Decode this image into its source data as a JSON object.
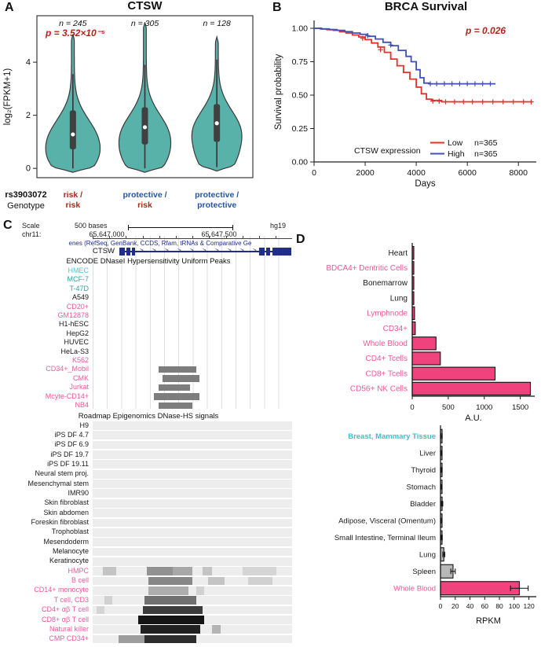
{
  "panels": {
    "a": {
      "letter": "A"
    },
    "b": {
      "letter": "B"
    },
    "c": {
      "letter": "C"
    },
    "d": {
      "letter": "D"
    }
  },
  "colors": {
    "red": "#b3241c",
    "blue": "#2456a4",
    "km_low": "#e23328",
    "km_high": "#4050b5",
    "violin_fill": "#58b2aa",
    "violin_stroke": "#3a3a3a",
    "box": "#404040",
    "pink_bar": "#f0437e",
    "pink_label": "#e85a9c",
    "cyan": "#45c8e8",
    "teal": "#2fa89f",
    "breast": "#3fbfc9",
    "gray_bar": "#b8b8b8",
    "peak": "#7d7d7d",
    "gene": "#202e8a",
    "row_bg": "#ededed",
    "grid": "#dcdfe4"
  },
  "chart_data": [
    {
      "id": "ctsw_violin",
      "type": "violin",
      "title": "CTSW",
      "p_value": "p = 3.52×10⁻⁵",
      "ylabel": "log₂(FPKM+1)",
      "yticks": [
        0,
        2,
        4
      ],
      "ylim": [
        -0.35,
        5.75
      ],
      "x_header": [
        "rs3903072",
        "Genotype"
      ],
      "groups": [
        {
          "n_label": "n = 245",
          "genotype_line1": "risk /",
          "genotype_line2": "risk",
          "line1_color": "red",
          "line2_color": "red",
          "median": 1.28,
          "q1": 0.72,
          "q3": 2.18,
          "whisker_low": 0.0,
          "whisker_high": 3.55,
          "tail_low": -0.15,
          "tail_high": 5.05,
          "mode": 1.05
        },
        {
          "n_label": "n = 305",
          "genotype_line1": "protective /",
          "genotype_line2": "risk",
          "line1_color": "blue",
          "line2_color": "red",
          "median": 1.55,
          "q1": 0.9,
          "q3": 2.3,
          "whisker_low": 0.0,
          "whisker_high": 3.9,
          "tail_low": -0.15,
          "tail_high": 5.5,
          "mode": 1.2
        },
        {
          "n_label": "n = 128",
          "genotype_line1": "protective /",
          "genotype_line2": "protective",
          "line1_color": "blue",
          "line2_color": "blue",
          "median": 1.7,
          "q1": 1.0,
          "q3": 2.42,
          "whisker_low": 0.05,
          "whisker_high": 4.1,
          "tail_low": -0.1,
          "tail_high": 4.95,
          "mode": 1.35
        }
      ]
    },
    {
      "id": "brca_km",
      "type": "line",
      "title": "BRCA Survival",
      "p_value": "p = 0.026",
      "xlabel": "Days",
      "ylabel": "Survival probability",
      "xticks": [
        0,
        2000,
        4000,
        6000,
        8000
      ],
      "yticks": [
        "0.00",
        "0.25",
        "0.50",
        "0.75",
        "1.00"
      ],
      "xlim": [
        0,
        8700
      ],
      "ylim": [
        0,
        1.02
      ],
      "legend_title": "CTSW expression",
      "series": [
        {
          "name": "Low",
          "n_label": "n=365",
          "color_key": "km_low",
          "steps": [
            [
              0,
              1.0
            ],
            [
              250,
              0.995
            ],
            [
              500,
              0.99
            ],
            [
              750,
              0.985
            ],
            [
              1000,
              0.975
            ],
            [
              1250,
              0.965
            ],
            [
              1500,
              0.95
            ],
            [
              1750,
              0.935
            ],
            [
              2000,
              0.915
            ],
            [
              2250,
              0.89
            ],
            [
              2500,
              0.86
            ],
            [
              2750,
              0.82
            ],
            [
              3000,
              0.77
            ],
            [
              3250,
              0.72
            ],
            [
              3500,
              0.67
            ],
            [
              3750,
              0.62
            ],
            [
              4000,
              0.56
            ],
            [
              4200,
              0.51
            ],
            [
              4400,
              0.47
            ],
            [
              4600,
              0.46
            ],
            [
              5000,
              0.45
            ],
            [
              8550,
              0.45
            ]
          ],
          "censors": [
            [
              1900,
              0.925
            ],
            [
              2600,
              0.84
            ],
            [
              4650,
              0.455
            ],
            [
              4900,
              0.455
            ],
            [
              5150,
              0.45
            ],
            [
              5500,
              0.45
            ],
            [
              5850,
              0.45
            ],
            [
              6200,
              0.45
            ],
            [
              6600,
              0.45
            ],
            [
              7000,
              0.45
            ],
            [
              7400,
              0.45
            ],
            [
              7800,
              0.45
            ],
            [
              8200,
              0.45
            ],
            [
              8500,
              0.45
            ]
          ]
        },
        {
          "name": "High",
          "n_label": "n=365",
          "color_key": "km_high",
          "steps": [
            [
              0,
              1.0
            ],
            [
              300,
              0.995
            ],
            [
              600,
              0.99
            ],
            [
              900,
              0.985
            ],
            [
              1200,
              0.975
            ],
            [
              1500,
              0.965
            ],
            [
              1800,
              0.955
            ],
            [
              2100,
              0.94
            ],
            [
              2400,
              0.92
            ],
            [
              2700,
              0.895
            ],
            [
              3000,
              0.87
            ],
            [
              3300,
              0.835
            ],
            [
              3600,
              0.79
            ],
            [
              3800,
              0.75
            ],
            [
              4000,
              0.69
            ],
            [
              4150,
              0.63
            ],
            [
              4300,
              0.59
            ],
            [
              4500,
              0.585
            ],
            [
              7100,
              0.585
            ]
          ],
          "censors": [
            [
              2100,
              0.945
            ],
            [
              3000,
              0.875
            ],
            [
              4550,
              0.585
            ],
            [
              4800,
              0.585
            ],
            [
              5100,
              0.585
            ],
            [
              5400,
              0.585
            ],
            [
              5700,
              0.585
            ],
            [
              6000,
              0.585
            ],
            [
              6300,
              0.585
            ],
            [
              6600,
              0.585
            ],
            [
              6900,
              0.585
            ]
          ]
        }
      ]
    },
    {
      "id": "au_bars",
      "type": "bar",
      "xlabel": "A.U.",
      "xticks": [
        0,
        500,
        1000,
        1500
      ],
      "xlim": [
        0,
        1700
      ],
      "bars": [
        {
          "label": "Heart",
          "value": 10,
          "label_color": "black",
          "fill": "pink"
        },
        {
          "label": "BDCA4+ Dentritic Cells",
          "value": 20,
          "label_color": "pink",
          "fill": "pink"
        },
        {
          "label": "Bonemarrow",
          "value": 14,
          "label_color": "black",
          "fill": "pink"
        },
        {
          "label": "Lung",
          "value": 20,
          "label_color": "black",
          "fill": "pink"
        },
        {
          "label": "Lymphnode",
          "value": 32,
          "label_color": "pink",
          "fill": "pink"
        },
        {
          "label": "CD34+",
          "value": 42,
          "label_color": "pink",
          "fill": "pink"
        },
        {
          "label": "Whole Blood",
          "value": 330,
          "label_color": "pink",
          "fill": "pink"
        },
        {
          "label": "CD4+ Tcells",
          "value": 390,
          "label_color": "pink",
          "fill": "pink"
        },
        {
          "label": "CD8+ Tcells",
          "value": 1150,
          "label_color": "pink",
          "fill": "pink"
        },
        {
          "label": "CD56+ NK Cells",
          "value": 1640,
          "label_color": "pink",
          "fill": "pink"
        }
      ]
    },
    {
      "id": "rpkm_bars",
      "type": "bar",
      "xlabel": "RPKM",
      "xticks": [
        0,
        20,
        40,
        60,
        80,
        100,
        120
      ],
      "xlim": [
        0,
        130
      ],
      "bars": [
        {
          "label": "Breast, Mammary Tissue",
          "value": 1.5,
          "err": 0.8,
          "label_color": "breast",
          "bold": true,
          "fill": "gray"
        },
        {
          "label": "Liver",
          "value": 1.2,
          "err": 0.5,
          "label_color": "black",
          "fill": "gray"
        },
        {
          "label": "Thyroid",
          "value": 1.6,
          "err": 0.6,
          "label_color": "black",
          "fill": "gray"
        },
        {
          "label": "Stomach",
          "value": 1.1,
          "err": 0.5,
          "label_color": "black",
          "fill": "gray"
        },
        {
          "label": "Bladder",
          "value": 2.2,
          "err": 0.9,
          "label_color": "black",
          "fill": "gray"
        },
        {
          "label": "Adipose, Visceral (Omentum)",
          "value": 1.4,
          "err": 0.6,
          "label_color": "black",
          "fill": "gray"
        },
        {
          "label": "Small Intestine, Terminal Ileum",
          "value": 1.7,
          "err": 0.7,
          "label_color": "black",
          "fill": "gray"
        },
        {
          "label": "Lung",
          "value": 4.5,
          "err": 1.3,
          "label_color": "black",
          "fill": "gray"
        },
        {
          "label": "Spleen",
          "value": 17,
          "err": 3,
          "label_color": "black",
          "fill": "gray"
        },
        {
          "label": "Whole Blood",
          "value": 107,
          "err": 12,
          "label_color": "pink",
          "fill": "pink"
        }
      ]
    }
  ],
  "genome_browser": {
    "scale_label": "Scale",
    "scale_text": "500 bases",
    "assembly": "hg19",
    "chrom": "chr11:",
    "coords": [
      "65,647,000",
      "65,647,500"
    ],
    "genes_track_text": "enes (RefSeq, GenBank, CCDS, Rfam, tRNAs & Comparative Ge",
    "gene_name": "CTSW",
    "encode_title": "ENCODE DNaseI Hypersensitivity Uniform Peaks",
    "roadmap_title": "Roadmap Epigenomics DNase-HS signals",
    "exons": [
      {
        "x": 34,
        "w": 7
      },
      {
        "x": 43,
        "w": 5
      },
      {
        "x": 50,
        "w": 4
      },
      {
        "x": 212,
        "w": 7
      },
      {
        "x": 221,
        "w": 5
      },
      {
        "x": 229,
        "w": 24
      }
    ],
    "encode_rows": [
      {
        "label": "HMEC",
        "color": "cyan"
      },
      {
        "label": "MCF-7",
        "color": "teal"
      },
      {
        "label": "T-47D",
        "color": "teal"
      },
      {
        "label": "A549",
        "color": "black"
      },
      {
        "label": "CD20+",
        "color": "pink"
      },
      {
        "label": "GM12878",
        "color": "pink"
      },
      {
        "label": "H1-hESC",
        "color": "black"
      },
      {
        "label": "HepG2",
        "color": "black"
      },
      {
        "label": "HUVEC",
        "color": "black"
      },
      {
        "label": "HeLa-S3",
        "color": "black"
      },
      {
        "label": "K562",
        "color": "pink"
      },
      {
        "label": "CD34+_Mobil",
        "color": "pink",
        "peak": {
          "s": 0.33,
          "e": 0.52
        }
      },
      {
        "label": "CMK",
        "color": "pink",
        "peak": {
          "s": 0.35,
          "e": 0.535
        }
      },
      {
        "label": "Jurkat",
        "color": "pink",
        "peak": {
          "s": 0.33,
          "e": 0.49
        }
      },
      {
        "label": "Mcyte-CD14+",
        "color": "pink",
        "peak": {
          "s": 0.305,
          "e": 0.535
        }
      },
      {
        "label": "NB4",
        "color": "pink",
        "peak": {
          "s": 0.33,
          "e": 0.5
        }
      }
    ],
    "roadmap_rows": [
      {
        "label": "H9",
        "color": "black",
        "segments": []
      },
      {
        "label": "iPS DF 4.7",
        "color": "black",
        "segments": []
      },
      {
        "label": "iPS DF 6.9",
        "color": "black",
        "segments": []
      },
      {
        "label": "iPS DF 19.7",
        "color": "black",
        "segments": []
      },
      {
        "label": "iPS DF 19.11",
        "color": "black",
        "segments": []
      },
      {
        "label": "Neural stem proj.",
        "color": "black",
        "segments": []
      },
      {
        "label": "Mesenchymal stem",
        "color": "black",
        "segments": []
      },
      {
        "label": "IMR90",
        "color": "black",
        "segments": []
      },
      {
        "label": "Skin fibroblast",
        "color": "black",
        "segments": []
      },
      {
        "label": "Skin abdomen",
        "color": "black",
        "segments": []
      },
      {
        "label": "Foreskin fibroblast",
        "color": "black",
        "segments": []
      },
      {
        "label": "Trophoblast",
        "color": "black",
        "segments": []
      },
      {
        "label": "Mesendoderm",
        "color": "black",
        "segments": []
      },
      {
        "label": "Melanocyte",
        "color": "black",
        "segments": []
      },
      {
        "label": "Keratinocyte",
        "color": "black",
        "segments": []
      },
      {
        "label": "HMPC",
        "color": "pink",
        "segments": [
          [
            0.05,
            0.12,
            0.18
          ],
          [
            0.27,
            0.4,
            0.4
          ],
          [
            0.4,
            0.5,
            0.3
          ],
          [
            0.55,
            0.6,
            0.18
          ],
          [
            0.75,
            0.92,
            0.1
          ]
        ]
      },
      {
        "label": "B cell",
        "color": "pink",
        "segments": [
          [
            0.28,
            0.5,
            0.45
          ],
          [
            0.58,
            0.66,
            0.18
          ],
          [
            0.78,
            0.9,
            0.12
          ]
        ]
      },
      {
        "label": "CD14+ monocyte",
        "color": "pink",
        "segments": [
          [
            0.28,
            0.48,
            0.28
          ],
          [
            0.52,
            0.56,
            0.12
          ]
        ]
      },
      {
        "label": "T cell, CD3",
        "color": "pink",
        "segments": [
          [
            0.06,
            0.1,
            0.12
          ],
          [
            0.26,
            0.52,
            0.55
          ]
        ]
      },
      {
        "label": "CD4+ αβ T cell",
        "color": "pink",
        "segments": [
          [
            0.02,
            0.06,
            0.1
          ],
          [
            0.25,
            0.55,
            0.78
          ]
        ]
      },
      {
        "label": "CD8+ αβ T cell",
        "color": "pink",
        "segments": [
          [
            0.23,
            0.56,
            0.95
          ]
        ]
      },
      {
        "label": "Natural killer",
        "color": "pink",
        "segments": [
          [
            0.24,
            0.54,
            0.9
          ],
          [
            0.6,
            0.64,
            0.25
          ]
        ]
      },
      {
        "label": "CMP CD34+",
        "color": "pink",
        "segments": [
          [
            0.13,
            0.26,
            0.35
          ],
          [
            0.26,
            0.52,
            0.85
          ]
        ]
      }
    ]
  }
}
